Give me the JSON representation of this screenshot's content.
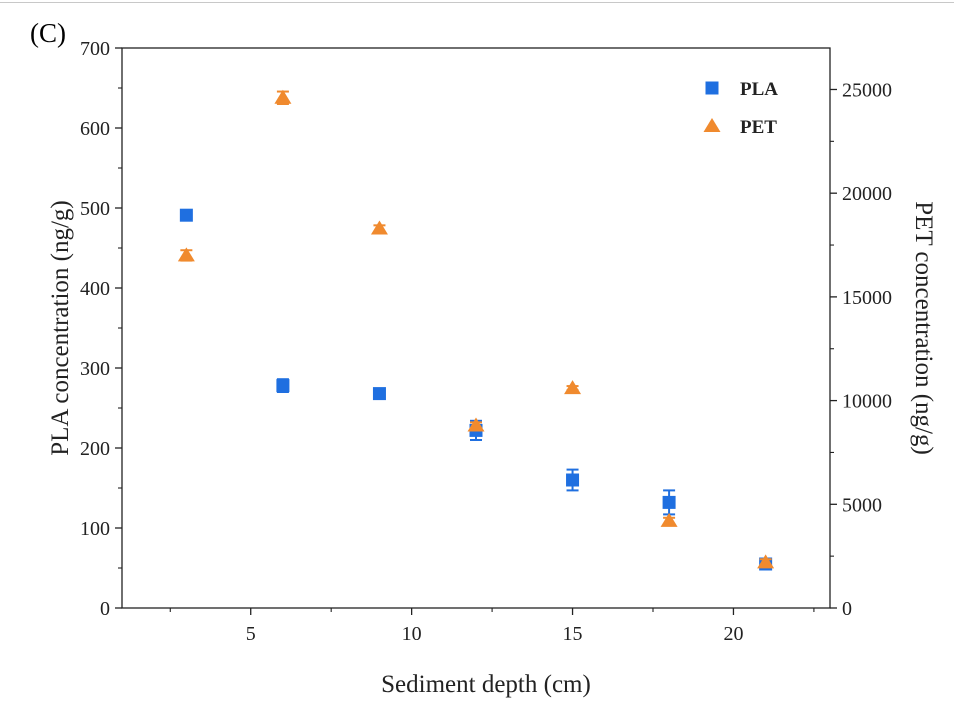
{
  "panel_label": "(C)",
  "colors": {
    "PLA": "#1f6fe0",
    "PET": "#f08a2e",
    "axis": "#222222"
  },
  "chart_data": {
    "type": "scatter",
    "title": "",
    "xlabel": "Sediment depth (cm)",
    "ylabel_left": "PLA concentration (ng/g)",
    "ylabel_right": "PET concentration (ng/g)",
    "xlim": [
      1,
      23
    ],
    "ylim_left": [
      0,
      700
    ],
    "ylim_right": [
      0,
      27000
    ],
    "x_ticks": [
      5,
      10,
      15,
      20
    ],
    "y_ticks_left": [
      0,
      100,
      200,
      300,
      400,
      500,
      600,
      700
    ],
    "y_ticks_right": [
      0,
      5000,
      10000,
      15000,
      20000,
      25000
    ],
    "legend_position": "top-right",
    "series": [
      {
        "name": "PLA",
        "marker": "square",
        "axis": "left",
        "points": [
          {
            "x": 3,
            "y": 491,
            "err": 5
          },
          {
            "x": 6,
            "y": 278,
            "err": 8
          },
          {
            "x": 9,
            "y": 268,
            "err": 4
          },
          {
            "x": 12,
            "y": 222,
            "err": 12
          },
          {
            "x": 15,
            "y": 160,
            "err": 13
          },
          {
            "x": 18,
            "y": 132,
            "err": 15
          },
          {
            "x": 21,
            "y": 55,
            "err": 4
          }
        ]
      },
      {
        "name": "PET",
        "marker": "triangle",
        "axis": "right",
        "points": [
          {
            "x": 3,
            "y": 17000,
            "err": 250
          },
          {
            "x": 6,
            "y": 24600,
            "err": 300
          },
          {
            "x": 9,
            "y": 18300,
            "err": 150
          },
          {
            "x": 12,
            "y": 8800,
            "err": 150
          },
          {
            "x": 15,
            "y": 10600,
            "err": 100
          },
          {
            "x": 18,
            "y": 4200,
            "err": 150
          },
          {
            "x": 21,
            "y": 2200,
            "err": 150
          }
        ]
      }
    ]
  }
}
